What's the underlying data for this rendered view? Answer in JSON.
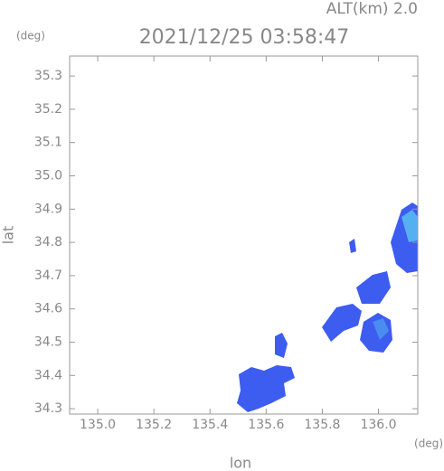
{
  "chart_data": {
    "type": "map",
    "title": "2021/12/25 03:58:47",
    "altitude_label": "ALT(km) 2.0",
    "y_unit": "(deg)",
    "x_unit": "(deg)",
    "ylabel": "lat",
    "xlabel": "lon",
    "xlim": [
      134.9,
      136.14
    ],
    "ylim": [
      34.284,
      35.36
    ],
    "xticks": [
      {
        "value": 135,
        "label": "135.0"
      },
      135.2,
      135.4,
      135.6,
      135.8,
      {
        "value": 136,
        "label": "136.0"
      }
    ],
    "yticks": [
      34.3,
      34.4,
      34.5,
      34.6,
      34.7,
      34.8,
      34.9,
      {
        "value": 35,
        "label": "35.0"
      },
      35.1,
      35.2,
      35.3
    ]
  }
}
